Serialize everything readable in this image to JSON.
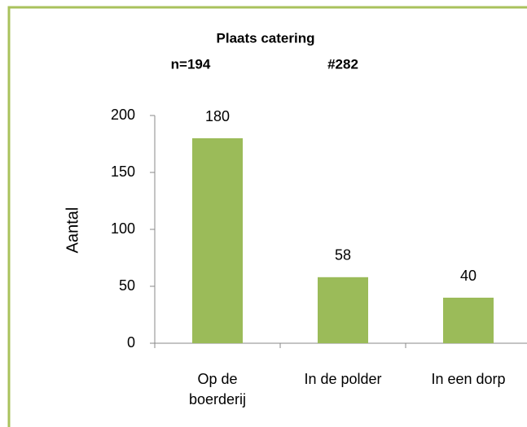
{
  "chart_data": {
    "type": "bar",
    "title": "Plaats catering",
    "subtitle": [
      "n=194",
      "#282"
    ],
    "y_label": "Aantal",
    "categories": [
      "Op de boerderij",
      "In de polder",
      "In een dorp"
    ],
    "values": [
      180,
      58,
      40
    ],
    "color": "#9bbb59",
    "ylim": [
      0,
      200
    ],
    "yticks": [
      0,
      50,
      100,
      150,
      200
    ],
    "grid": false
  }
}
